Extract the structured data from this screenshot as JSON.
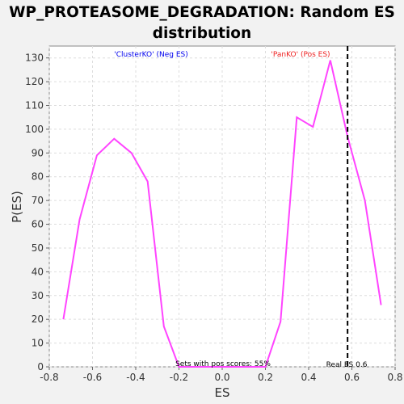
{
  "chart_data": {
    "type": "line",
    "title_line1": "WP_PROTEASOME_DEGRADATION: Random ES",
    "title_line2": "distribution",
    "xlabel": "ES",
    "ylabel": "P(ES)",
    "xlim": [
      -0.8,
      0.8
    ],
    "ylim": [
      0,
      135
    ],
    "xticks": [
      -0.8,
      -0.6,
      -0.4,
      -0.2,
      0.0,
      0.2,
      0.4,
      0.6,
      0.8
    ],
    "xtick_labels": [
      "-0.8",
      "-0.6",
      "-0.4",
      "-0.2",
      "0.0",
      "0.2",
      "0.4",
      "0.6",
      "0.8"
    ],
    "yticks": [
      0,
      10,
      20,
      30,
      40,
      50,
      60,
      70,
      80,
      90,
      100,
      110,
      120,
      130
    ],
    "grid": true,
    "series": [
      {
        "color": "#ff44ff",
        "x": [
          -0.735,
          -0.66,
          -0.58,
          -0.5,
          -0.42,
          -0.345,
          -0.27,
          -0.2,
          0.2,
          0.27,
          0.345,
          0.42,
          0.5,
          0.58,
          0.66,
          0.735
        ],
        "y": [
          20,
          62,
          89,
          96,
          90,
          78,
          17,
          0,
          0,
          19,
          105,
          101,
          129,
          97,
          70,
          26
        ]
      }
    ],
    "real_es": 0.58,
    "annotations": {
      "neg": "'ClusterKO' (Neg ES)",
      "pos": "'PanKO' (Pos ES)",
      "sets_pos": "Sets with pos scores: 55%",
      "real_es_label": "Real ES 0.6"
    },
    "colors": {
      "neg": "#0000ee",
      "pos": "#ee2222",
      "line": "#ff44ff",
      "real_es": "#000000"
    }
  }
}
